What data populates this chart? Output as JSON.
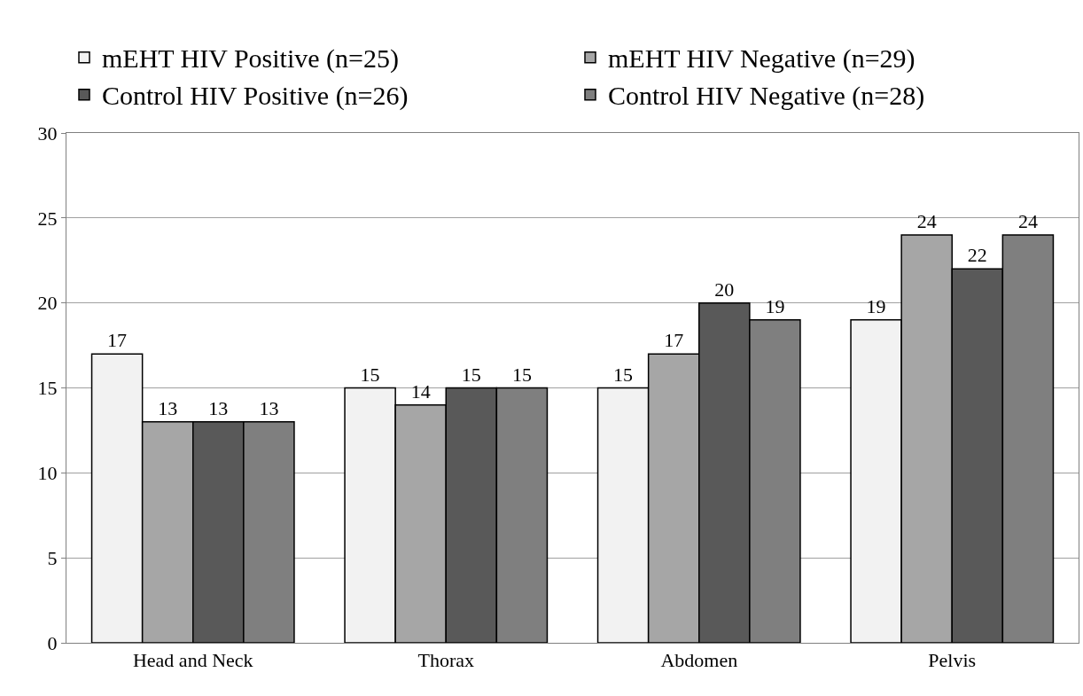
{
  "chart_data": {
    "type": "bar",
    "categories": [
      "Head and Neck",
      "Thorax",
      "Abdomen",
      "Pelvis"
    ],
    "series": [
      {
        "name": "mEHT HIV Positive (n=25)",
        "color": "#f2f2f2",
        "values": [
          17,
          15,
          15,
          19
        ]
      },
      {
        "name": "mEHT HIV Negative (n=29)",
        "color": "#a6a6a6",
        "values": [
          13,
          14,
          17,
          24
        ]
      },
      {
        "name": "Control HIV Positive (n=26)",
        "color": "#595959",
        "values": [
          13,
          15,
          20,
          22
        ]
      },
      {
        "name": "Control HIV Negative (n=28)",
        "color": "#7f7f7f",
        "values": [
          13,
          15,
          19,
          24
        ]
      }
    ],
    "ylim": [
      0,
      30
    ],
    "yticks": [
      0,
      5,
      10,
      15,
      20,
      25,
      30
    ],
    "grid": "y",
    "legend": "top",
    "data_labels": true
  }
}
